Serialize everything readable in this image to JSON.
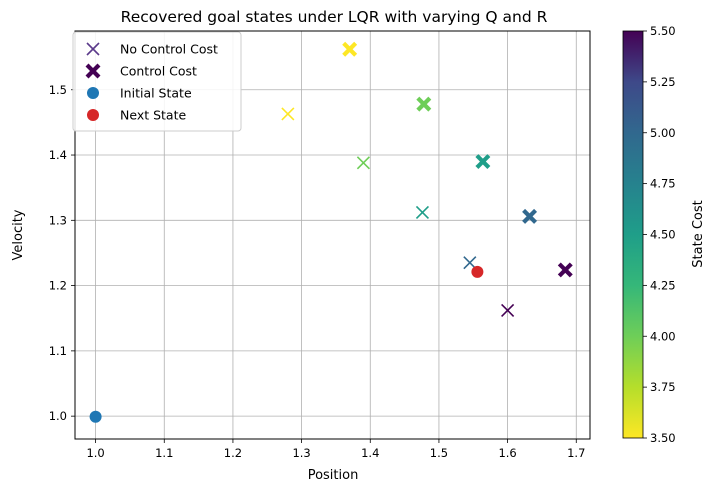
{
  "chart_data": {
    "type": "scatter",
    "title": "Recovered goal states under LQR with varying Q and R",
    "xlabel": "Position",
    "ylabel": "Velocity",
    "xlim": [
      0.97,
      1.72
    ],
    "ylim": [
      0.965,
      1.59
    ],
    "xticks": [
      "1.0",
      "1.1",
      "1.2",
      "1.3",
      "1.4",
      "1.5",
      "1.6",
      "1.7"
    ],
    "yticks": [
      "1.0",
      "1.1",
      "1.2",
      "1.3",
      "1.4",
      "1.5"
    ],
    "grid": true,
    "legend_position": "top-left",
    "colorbar": {
      "label": "State Cost",
      "range": [
        3.5,
        5.5
      ],
      "ticks": [
        "3.50",
        "3.75",
        "4.00",
        "4.25",
        "4.50",
        "4.75",
        "5.00",
        "5.25",
        "5.50"
      ],
      "colormap": "viridis"
    },
    "series": [
      {
        "name": "No Control Cost",
        "marker": "x",
        "points": [
          {
            "x": 1.28,
            "y": 1.463,
            "state_cost": 3.5
          },
          {
            "x": 1.39,
            "y": 1.388,
            "state_cost": 4.0
          },
          {
            "x": 1.476,
            "y": 1.312,
            "state_cost": 4.5
          },
          {
            "x": 1.545,
            "y": 1.235,
            "state_cost": 5.0
          },
          {
            "x": 1.6,
            "y": 1.162,
            "state_cost": 5.5
          }
        ]
      },
      {
        "name": "Control Cost",
        "marker": "X",
        "points": [
          {
            "x": 1.37,
            "y": 1.562,
            "state_cost": 3.5
          },
          {
            "x": 1.478,
            "y": 1.478,
            "state_cost": 4.0
          },
          {
            "x": 1.564,
            "y": 1.39,
            "state_cost": 4.5
          },
          {
            "x": 1.632,
            "y": 1.306,
            "state_cost": 5.0
          },
          {
            "x": 1.684,
            "y": 1.224,
            "state_cost": 5.5
          }
        ]
      },
      {
        "name": "Initial State",
        "marker": "o",
        "color": "#1f77b4",
        "points": [
          {
            "x": 1.0,
            "y": 0.999
          }
        ]
      },
      {
        "name": "Next State",
        "marker": "o",
        "color": "#d62728",
        "points": [
          {
            "x": 1.556,
            "y": 1.221
          }
        ]
      }
    ]
  }
}
